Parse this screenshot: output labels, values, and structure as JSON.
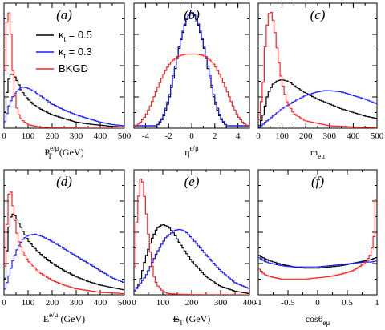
{
  "colors": {
    "kt05": "#000000",
    "kt03": "#1a1aff",
    "bkgd": "#ff2020"
  },
  "legend": [
    {
      "key": "kt05",
      "prefix": "κ",
      "sub": "t",
      "suffix": " = 0.5"
    },
    {
      "key": "kt03",
      "prefix": "κ",
      "sub": "t",
      "suffix": " = 0.3"
    },
    {
      "key": "bkgd",
      "prefix": "BKGD",
      "sub": "",
      "suffix": ""
    }
  ],
  "chart_data": [
    {
      "type": "line",
      "letter": "(a)",
      "xlabel": {
        "main": "P",
        "sub": "T",
        "sup": "e/μ",
        "tail": " (GeV)"
      },
      "xlim": [
        0,
        500
      ],
      "xticks": [
        0,
        100,
        200,
        300,
        400,
        500
      ],
      "ylim": [
        0,
        1
      ],
      "series": [
        {
          "key": "kt05",
          "x": [
            0,
            10,
            20,
            30,
            40,
            50,
            60,
            70,
            80,
            100,
            120,
            150,
            200,
            250,
            300,
            350,
            400,
            450,
            500
          ],
          "values": [
            0.05,
            0.26,
            0.4,
            0.45,
            0.44,
            0.41,
            0.37,
            0.32,
            0.29,
            0.24,
            0.2,
            0.16,
            0.11,
            0.08,
            0.05,
            0.035,
            0.025,
            0.015,
            0.01
          ]
        },
        {
          "key": "kt03",
          "x": [
            0,
            10,
            20,
            30,
            40,
            60,
            80,
            100,
            120,
            150,
            200,
            250,
            300,
            350,
            400,
            450,
            500
          ],
          "values": [
            0.02,
            0.1,
            0.18,
            0.23,
            0.27,
            0.32,
            0.34,
            0.33,
            0.31,
            0.27,
            0.2,
            0.15,
            0.11,
            0.08,
            0.05,
            0.03,
            0.02
          ]
        },
        {
          "key": "bkgd",
          "x": [
            0,
            5,
            10,
            15,
            20,
            25,
            30,
            35,
            40,
            45,
            50,
            60,
            70,
            80,
            100,
            120,
            150,
            200,
            300,
            500
          ],
          "values": [
            0.1,
            0.55,
            0.82,
            0.93,
            0.96,
            0.9,
            0.75,
            0.55,
            0.4,
            0.28,
            0.2,
            0.12,
            0.08,
            0.06,
            0.03,
            0.02,
            0.01,
            0.005,
            0.002,
            0.0
          ]
        }
      ]
    },
    {
      "type": "line",
      "letter": "(b)",
      "xlabel": {
        "main": "η",
        "sub": "",
        "sup": "e/μ",
        "tail": ""
      },
      "xlim": [
        -5,
        5
      ],
      "xticks": [
        -4,
        -2,
        0,
        2,
        4
      ],
      "ylim": [
        0,
        1
      ],
      "series": [
        {
          "key": "kt05",
          "x": [
            -3,
            -2.5,
            -2,
            -1.5,
            -1,
            -0.5,
            -0.25,
            0,
            0.25,
            0.5,
            1,
            1.5,
            2,
            2.5,
            3
          ],
          "values": [
            0.02,
            0.08,
            0.22,
            0.45,
            0.7,
            0.88,
            0.93,
            0.95,
            0.93,
            0.88,
            0.7,
            0.45,
            0.22,
            0.08,
            0.02
          ]
        },
        {
          "key": "kt03",
          "x": [
            -3,
            -2.5,
            -2,
            -1.5,
            -1,
            -0.5,
            -0.25,
            0,
            0.25,
            0.5,
            1,
            1.5,
            2,
            2.5,
            3
          ],
          "values": [
            0.02,
            0.09,
            0.24,
            0.47,
            0.71,
            0.89,
            0.94,
            0.96,
            0.94,
            0.89,
            0.71,
            0.47,
            0.24,
            0.09,
            0.02
          ]
        },
        {
          "key": "bkgd",
          "x": [
            -5,
            -4.5,
            -4,
            -3.5,
            -3,
            -2.5,
            -2,
            -1.5,
            -1,
            -0.5,
            0,
            0.5,
            1,
            1.5,
            2,
            2.5,
            3,
            3.5,
            4,
            4.5,
            5
          ],
          "values": [
            0.01,
            0.04,
            0.1,
            0.2,
            0.32,
            0.43,
            0.52,
            0.57,
            0.6,
            0.61,
            0.61,
            0.61,
            0.6,
            0.57,
            0.52,
            0.43,
            0.32,
            0.2,
            0.1,
            0.04,
            0.01
          ]
        }
      ]
    },
    {
      "type": "line",
      "letter": "(c)",
      "xlabel": {
        "main": "m",
        "sub": "eμ",
        "sup": "",
        "tail": ""
      },
      "xlim": [
        0,
        500
      ],
      "xticks": [
        0,
        100,
        200,
        300,
        400,
        500
      ],
      "ylim": [
        0,
        1
      ],
      "series": [
        {
          "key": "kt05",
          "x": [
            0,
            20,
            40,
            60,
            80,
            100,
            120,
            140,
            160,
            200,
            250,
            300,
            350,
            400,
            450,
            500
          ],
          "values": [
            0.0,
            0.1,
            0.28,
            0.36,
            0.39,
            0.4,
            0.39,
            0.37,
            0.34,
            0.29,
            0.24,
            0.2,
            0.16,
            0.13,
            0.1,
            0.08
          ]
        },
        {
          "key": "kt03",
          "x": [
            0,
            50,
            100,
            150,
            200,
            250,
            280,
            300,
            350,
            400,
            450,
            500
          ],
          "values": [
            0.0,
            0.08,
            0.16,
            0.22,
            0.27,
            0.3,
            0.31,
            0.31,
            0.3,
            0.27,
            0.24,
            0.2
          ]
        },
        {
          "key": "bkgd",
          "x": [
            0,
            20,
            30,
            40,
            50,
            60,
            70,
            80,
            90,
            100,
            120,
            150,
            200,
            300,
            400,
            500
          ],
          "values": [
            0.0,
            0.35,
            0.7,
            0.9,
            0.98,
            0.92,
            0.8,
            0.65,
            0.5,
            0.38,
            0.22,
            0.12,
            0.06,
            0.02,
            0.01,
            0.005
          ]
        }
      ]
    },
    {
      "type": "line",
      "letter": "(d)",
      "xlabel": {
        "main": "E",
        "sub": "",
        "sup": "e/μ",
        "tail": " (GeV)"
      },
      "xlim": [
        0,
        500
      ],
      "xticks": [
        0,
        100,
        200,
        300,
        400,
        500
      ],
      "ylim": [
        0,
        1
      ],
      "series": [
        {
          "key": "kt05",
          "x": [
            0,
            10,
            20,
            30,
            40,
            50,
            60,
            80,
            100,
            120,
            150,
            200,
            250,
            300,
            350,
            400,
            450,
            500
          ],
          "values": [
            0.02,
            0.3,
            0.55,
            0.65,
            0.67,
            0.64,
            0.6,
            0.52,
            0.45,
            0.4,
            0.34,
            0.26,
            0.2,
            0.15,
            0.11,
            0.08,
            0.06,
            0.04
          ]
        },
        {
          "key": "kt03",
          "x": [
            0,
            20,
            40,
            60,
            80,
            100,
            130,
            160,
            200,
            250,
            300,
            350,
            400,
            450,
            500
          ],
          "values": [
            0.02,
            0.15,
            0.3,
            0.4,
            0.46,
            0.49,
            0.5,
            0.48,
            0.44,
            0.38,
            0.32,
            0.26,
            0.2,
            0.14,
            0.1
          ]
        },
        {
          "key": "bkgd",
          "x": [
            0,
            10,
            20,
            25,
            30,
            40,
            50,
            60,
            80,
            100,
            150,
            200,
            250,
            300,
            400,
            500
          ],
          "values": [
            0.05,
            0.5,
            0.82,
            0.88,
            0.84,
            0.7,
            0.55,
            0.45,
            0.35,
            0.28,
            0.18,
            0.12,
            0.08,
            0.05,
            0.02,
            0.01
          ]
        }
      ]
    },
    {
      "type": "line",
      "letter": "(e)",
      "xlabel": {
        "main": "E",
        "sub": "T",
        "sup": "",
        "tail": " (GeV)",
        "slashed": true
      },
      "xlim": [
        0,
        400
      ],
      "xticks": [
        0,
        100,
        200,
        300,
        400
      ],
      "ylim": [
        0,
        1
      ],
      "series": [
        {
          "key": "kt05",
          "x": [
            0,
            20,
            40,
            60,
            80,
            100,
            120,
            140,
            160,
            200,
            250,
            300,
            350,
            400
          ],
          "values": [
            0.02,
            0.1,
            0.3,
            0.45,
            0.55,
            0.58,
            0.56,
            0.5,
            0.42,
            0.28,
            0.15,
            0.07,
            0.03,
            0.01
          ]
        },
        {
          "key": "kt03",
          "x": [
            0,
            40,
            80,
            110,
            140,
            160,
            180,
            200,
            250,
            300,
            350,
            400
          ],
          "values": [
            0.02,
            0.15,
            0.35,
            0.47,
            0.53,
            0.54,
            0.52,
            0.47,
            0.33,
            0.2,
            0.1,
            0.05
          ]
        },
        {
          "key": "bkgd",
          "x": [
            0,
            10,
            20,
            25,
            30,
            40,
            50,
            60,
            70,
            80,
            100,
            120,
            150,
            200,
            400
          ],
          "values": [
            0.05,
            0.6,
            0.92,
            0.97,
            0.93,
            0.75,
            0.5,
            0.28,
            0.15,
            0.08,
            0.03,
            0.01,
            0.005,
            0.002,
            0.0
          ]
        }
      ]
    },
    {
      "type": "line",
      "letter": "(f)",
      "xlabel": {
        "main": "cosθ",
        "sub": "eμ",
        "sup": "",
        "tail": ""
      },
      "xlim": [
        -1,
        1
      ],
      "xticks": [
        -1,
        -0.5,
        0,
        0.5,
        1
      ],
      "ylim": [
        0,
        1
      ],
      "series": [
        {
          "key": "kt05",
          "x": [
            -1,
            -0.9,
            -0.8,
            -0.6,
            -0.4,
            -0.2,
            0,
            0.2,
            0.4,
            0.6,
            0.8,
            0.9,
            1
          ],
          "values": [
            0.33,
            0.3,
            0.28,
            0.25,
            0.23,
            0.22,
            0.22,
            0.23,
            0.24,
            0.26,
            0.28,
            0.29,
            0.31
          ]
        },
        {
          "key": "kt03",
          "x": [
            -1,
            -0.9,
            -0.8,
            -0.6,
            -0.4,
            -0.2,
            0,
            0.2,
            0.4,
            0.6,
            0.8,
            0.9,
            1
          ],
          "values": [
            0.31,
            0.28,
            0.26,
            0.24,
            0.23,
            0.23,
            0.23,
            0.24,
            0.25,
            0.26,
            0.27,
            0.27,
            0.28
          ]
        },
        {
          "key": "bkgd",
          "x": [
            -1,
            -0.9,
            -0.8,
            -0.6,
            -0.4,
            -0.2,
            0,
            0.2,
            0.4,
            0.6,
            0.8,
            0.9,
            0.95,
            0.98,
            1
          ],
          "values": [
            0.22,
            0.17,
            0.15,
            0.13,
            0.13,
            0.13,
            0.14,
            0.15,
            0.17,
            0.2,
            0.26,
            0.34,
            0.48,
            0.75,
            0.98
          ]
        }
      ]
    }
  ]
}
